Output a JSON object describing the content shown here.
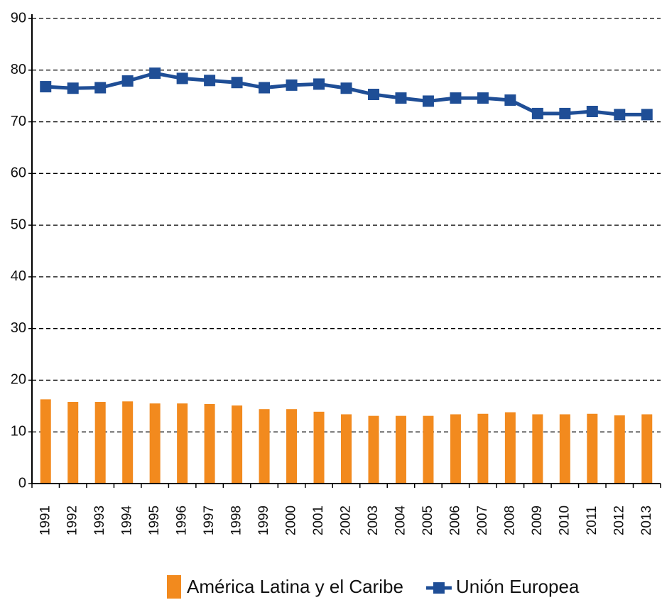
{
  "chart_data": {
    "type": "combo",
    "categories": [
      "1991",
      "1992",
      "1993",
      "1994",
      "1995",
      "1996",
      "1997",
      "1998",
      "1999",
      "2000",
      "2001",
      "2002",
      "2003",
      "2004",
      "2005",
      "2006",
      "2007",
      "2008",
      "2009",
      "2010",
      "2011",
      "2012",
      "2013"
    ],
    "series": [
      {
        "name": "América Latina y el Caribe",
        "type": "bar",
        "color": "#f28a1e",
        "values": [
          16.3,
          15.8,
          15.8,
          15.9,
          15.5,
          15.5,
          15.4,
          15.1,
          14.4,
          14.4,
          13.9,
          13.4,
          13.1,
          13.1,
          13.1,
          13.4,
          13.5,
          13.8,
          13.4,
          13.4,
          13.5,
          13.2,
          13.4
        ]
      },
      {
        "name": "Unión Europea",
        "type": "line",
        "color": "#1f4e96",
        "values": [
          76.8,
          76.5,
          76.6,
          77.9,
          79.4,
          78.4,
          78.0,
          77.6,
          76.6,
          77.1,
          77.3,
          76.5,
          75.3,
          74.6,
          74.0,
          74.6,
          74.6,
          74.2,
          71.6,
          71.6,
          72.0,
          71.4,
          71.4
        ]
      }
    ],
    "ylim": [
      0,
      90
    ],
    "yticks": [
      0,
      10,
      20,
      30,
      40,
      50,
      60,
      70,
      80,
      90
    ],
    "grid": true,
    "legend": "bottom"
  }
}
